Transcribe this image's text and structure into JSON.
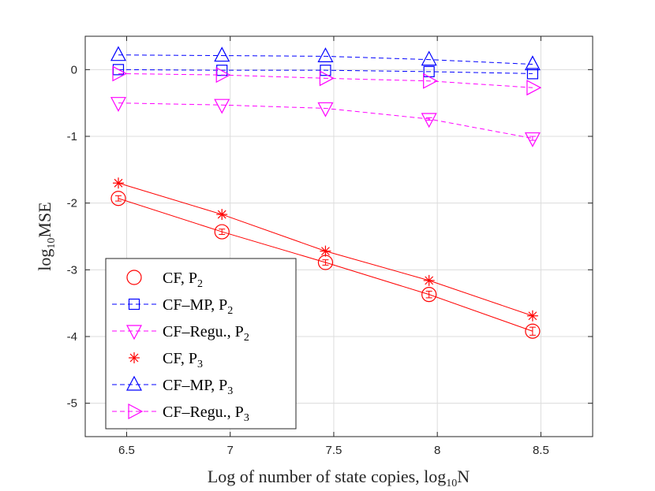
{
  "chart_data": {
    "type": "line",
    "title": "",
    "xlabel": "Log of number of state copies, log",
    "xlabel_sub": "10",
    "xlabel_suffix": "N",
    "ylabel": "log",
    "ylabel_sub": "10",
    "ylabel_suffix": "MSE",
    "xlim": [
      6.3,
      8.75
    ],
    "ylim": [
      -5.5,
      0.5
    ],
    "xticks": [
      6.5,
      7,
      7.5,
      8,
      8.5
    ],
    "xtick_labels": [
      "6.5",
      "7",
      "7.5",
      "8",
      "8.5"
    ],
    "yticks": [
      0,
      -1,
      -2,
      -3,
      -4,
      -5
    ],
    "ytick_labels": [
      "0",
      "-1",
      "-2",
      "-3",
      "-4",
      "-5"
    ],
    "grid": true,
    "legend_position": "bottom-left",
    "x": [
      6.46,
      6.96,
      7.46,
      7.96,
      8.46
    ],
    "series": [
      {
        "name": "CF, P",
        "sub": "2",
        "color": "#ff0000",
        "marker": "circle",
        "line": "solid",
        "values": [
          -1.93,
          -2.43,
          -2.89,
          -3.37,
          -3.92
        ],
        "error": [
          0.04,
          0.04,
          0.04,
          0.05,
          0.06
        ]
      },
      {
        "name": "CF–MP, P",
        "sub": "2",
        "color": "#0000ff",
        "marker": "square",
        "line": "dashed",
        "values": [
          0.0,
          -0.01,
          -0.01,
          -0.03,
          -0.06
        ],
        "error": [
          0.0,
          0.0,
          0.0,
          0.0,
          0.0
        ]
      },
      {
        "name": "CF–Regu., P",
        "sub": "2",
        "color": "#ff00ff",
        "marker": "triangle-down",
        "line": "dashed",
        "values": [
          -0.5,
          -0.53,
          -0.58,
          -0.74,
          -1.03
        ],
        "error": [
          0.0,
          0.0,
          0.0,
          0.02,
          0.03
        ]
      },
      {
        "name": "CF, P",
        "sub": "3",
        "color": "#ff0000",
        "marker": "asterisk",
        "line": "solid",
        "values": [
          -1.7,
          -2.17,
          -2.72,
          -3.16,
          -3.69
        ],
        "error": [
          0.0,
          0.0,
          0.0,
          0.0,
          0.0
        ]
      },
      {
        "name": "CF–MP, P",
        "sub": "3",
        "color": "#0000ff",
        "marker": "triangle-up",
        "line": "dashed",
        "values": [
          0.22,
          0.21,
          0.2,
          0.15,
          0.08
        ],
        "error": [
          0.0,
          0.0,
          0.0,
          0.0,
          0.0
        ]
      },
      {
        "name": "CF–Regu., P",
        "sub": "3",
        "color": "#ff00ff",
        "marker": "triangle-right",
        "line": "dashed",
        "values": [
          -0.06,
          -0.08,
          -0.13,
          -0.17,
          -0.27
        ],
        "error": [
          0.0,
          0.0,
          0.0,
          0.0,
          0.0
        ]
      }
    ]
  }
}
